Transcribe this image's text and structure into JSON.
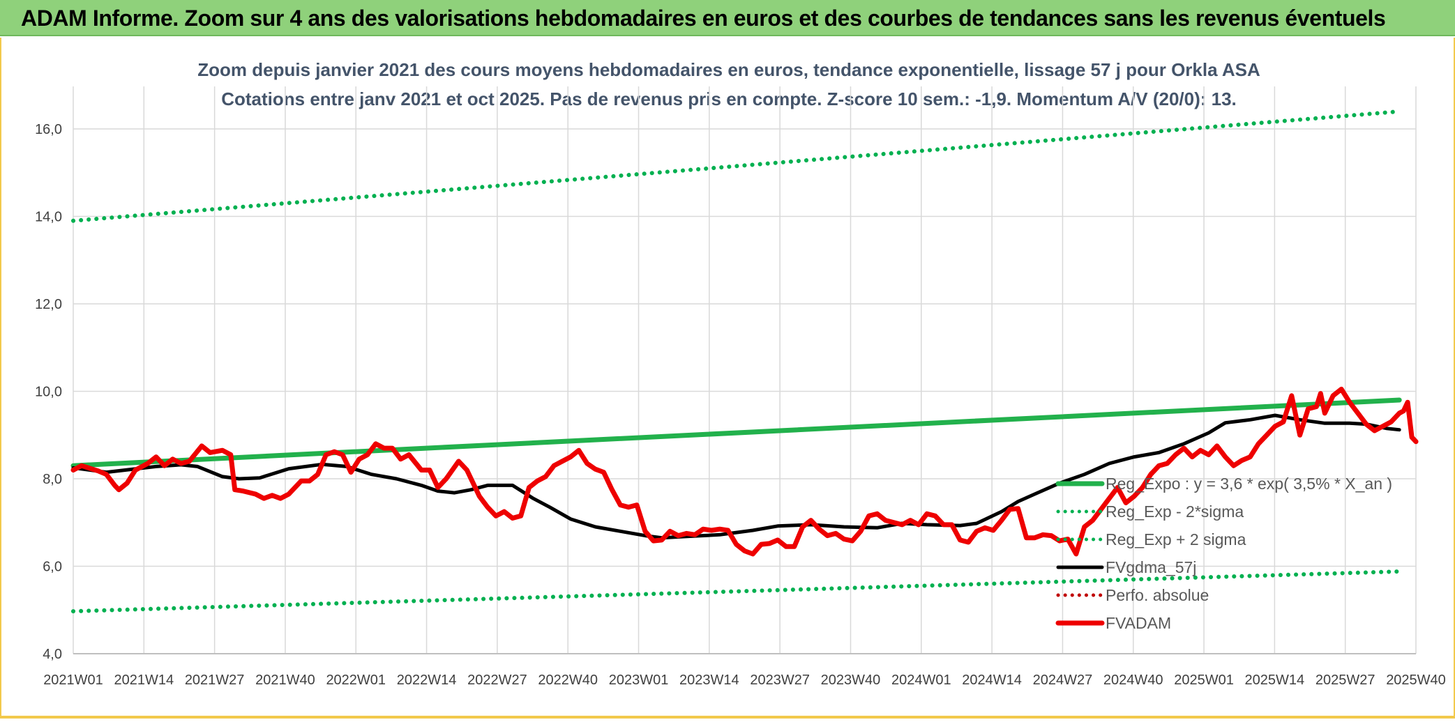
{
  "banner": {
    "title": "ADAM Informe. Zoom sur 4 ans des valorisations hebdomadaires en euros et des courbes de tendances sans les revenus éventuels"
  },
  "chart_data": {
    "type": "line",
    "title_line1": "Zoom depuis janvier 2021 des cours moyens hebdomadaires en euros, tendance exponentielle, lissage 57 j pour Orkla ASA",
    "title_line2": "Cotations entre janv 2021 et oct 2025. Pas de revenus pris en compte. Z-score 10 sem.: -1,9. Momentum A/V (20/0): 13.",
    "ylim": [
      4,
      17
    ],
    "yticks": [
      "4,0",
      "6,0",
      "8,0",
      "10,0",
      "12,0",
      "14,0",
      "16,0"
    ],
    "ytick_values": [
      4,
      6,
      8,
      10,
      12,
      14,
      16
    ],
    "xticks": [
      "2021W01",
      "2021W14",
      "2021W27",
      "2021W40",
      "2022W01",
      "2022W14",
      "2022W27",
      "2022W40",
      "2023W01",
      "2023W14",
      "2023W27",
      "2023W40",
      "2024W01",
      "2024W14",
      "2024W27",
      "2024W40",
      "2025W01",
      "2025W14",
      "2025W27",
      "2025W40"
    ],
    "x_count": 249,
    "grid": true,
    "legend_position": "bottom-right",
    "colors": {
      "reg_expo": "#22b14c",
      "sigma": "#00b050",
      "fvgdma": "#000000",
      "perfo": "#c00000",
      "fvadam": "#ee0000"
    },
    "series": [
      {
        "name": "Reg_Expo : y = 3,6 * exp( 3,5% *  X_an )",
        "key": "reg_expo",
        "style": "solid",
        "knots": [
          [
            0,
            8.3
          ],
          [
            248,
            9.8
          ]
        ]
      },
      {
        "name": "Reg_Exp - 2*sigma",
        "key": "sigma_minus",
        "style": "dotted",
        "knots": [
          [
            0,
            4.97
          ],
          [
            248,
            5.88
          ]
        ]
      },
      {
        "name": "Reg_Exp + 2 sigma",
        "key": "sigma_plus",
        "style": "dotted",
        "knots": [
          [
            0,
            13.9
          ],
          [
            248,
            16.4
          ]
        ]
      },
      {
        "name": "FVgdma_57j",
        "key": "fvgdma",
        "style": "solid",
        "knots": [
          [
            0,
            8.25
          ],
          [
            8,
            8.15
          ],
          [
            20,
            8.28
          ],
          [
            26,
            8.32
          ],
          [
            30,
            8.28
          ],
          [
            36,
            8.05
          ],
          [
            40,
            8.0
          ],
          [
            45,
            8.02
          ],
          [
            52,
            8.23
          ],
          [
            60,
            8.33
          ],
          [
            66,
            8.28
          ],
          [
            72,
            8.1
          ],
          [
            78,
            8.0
          ],
          [
            84,
            7.85
          ],
          [
            88,
            7.72
          ],
          [
            92,
            7.68
          ],
          [
            96,
            7.75
          ],
          [
            100,
            7.85
          ],
          [
            106,
            7.85
          ],
          [
            111,
            7.55
          ],
          [
            115,
            7.35
          ],
          [
            120,
            7.08
          ],
          [
            126,
            6.9
          ],
          [
            132,
            6.8
          ],
          [
            138,
            6.7
          ],
          [
            142,
            6.65
          ],
          [
            148,
            6.68
          ],
          [
            156,
            6.72
          ],
          [
            164,
            6.82
          ],
          [
            170,
            6.92
          ],
          [
            178,
            6.95
          ],
          [
            186,
            6.9
          ],
          [
            194,
            6.88
          ],
          [
            200,
            6.98
          ],
          [
            206,
            6.95
          ],
          [
            214,
            6.93
          ],
          [
            218,
            6.98
          ],
          [
            224,
            7.25
          ],
          [
            228,
            7.48
          ],
          [
            232,
            7.65
          ],
          [
            238,
            7.9
          ],
          [
            244,
            8.1
          ],
          [
            250,
            8.35
          ],
          [
            256,
            8.5
          ],
          [
            262,
            8.6
          ],
          [
            268,
            8.8
          ],
          [
            274,
            9.05
          ],
          [
            278,
            9.28
          ],
          [
            284,
            9.35
          ],
          [
            290,
            9.45
          ],
          [
            296,
            9.35
          ],
          [
            302,
            9.27
          ],
          [
            308,
            9.27
          ],
          [
            312,
            9.25
          ],
          [
            317,
            9.15
          ],
          [
            320,
            9.12
          ]
        ]
      },
      {
        "name": "Perfo. absolue",
        "key": "perfo",
        "style": "dotted",
        "knots": []
      },
      {
        "name": "FVADAM",
        "key": "fvadam",
        "style": "solid",
        "knots": [
          [
            0,
            8.2
          ],
          [
            2,
            8.3
          ],
          [
            6,
            8.18
          ],
          [
            8,
            8.1
          ],
          [
            10,
            7.85
          ],
          [
            11,
            7.75
          ],
          [
            13,
            7.9
          ],
          [
            15,
            8.2
          ],
          [
            18,
            8.35
          ],
          [
            20,
            8.5
          ],
          [
            22,
            8.3
          ],
          [
            24,
            8.45
          ],
          [
            26,
            8.35
          ],
          [
            28,
            8.4
          ],
          [
            31,
            8.75
          ],
          [
            33,
            8.6
          ],
          [
            36,
            8.65
          ],
          [
            38,
            8.55
          ],
          [
            39,
            7.75
          ],
          [
            41,
            7.72
          ],
          [
            44,
            7.65
          ],
          [
            46,
            7.55
          ],
          [
            48,
            7.62
          ],
          [
            50,
            7.55
          ],
          [
            52,
            7.65
          ],
          [
            55,
            7.95
          ],
          [
            57,
            7.95
          ],
          [
            59,
            8.1
          ],
          [
            61,
            8.55
          ],
          [
            63,
            8.62
          ],
          [
            65,
            8.55
          ],
          [
            67,
            8.15
          ],
          [
            69,
            8.45
          ],
          [
            71,
            8.55
          ],
          [
            73,
            8.8
          ],
          [
            75,
            8.7
          ],
          [
            77,
            8.7
          ],
          [
            79,
            8.45
          ],
          [
            81,
            8.55
          ],
          [
            84,
            8.2
          ],
          [
            86,
            8.2
          ],
          [
            88,
            7.8
          ],
          [
            90,
            8.0
          ],
          [
            93,
            8.4
          ],
          [
            95,
            8.2
          ],
          [
            98,
            7.6
          ],
          [
            100,
            7.35
          ],
          [
            102,
            7.15
          ],
          [
            104,
            7.25
          ],
          [
            106,
            7.1
          ],
          [
            108,
            7.15
          ],
          [
            110,
            7.8
          ],
          [
            112,
            7.95
          ],
          [
            114,
            8.05
          ],
          [
            116,
            8.3
          ],
          [
            118,
            8.4
          ],
          [
            120,
            8.5
          ],
          [
            122,
            8.65
          ],
          [
            124,
            8.35
          ],
          [
            126,
            8.22
          ],
          [
            128,
            8.15
          ],
          [
            130,
            7.75
          ],
          [
            132,
            7.4
          ],
          [
            134,
            7.35
          ],
          [
            136,
            7.4
          ],
          [
            138,
            6.8
          ],
          [
            140,
            6.58
          ],
          [
            142,
            6.6
          ],
          [
            144,
            6.8
          ],
          [
            146,
            6.7
          ],
          [
            148,
            6.75
          ],
          [
            150,
            6.72
          ],
          [
            152,
            6.85
          ],
          [
            154,
            6.82
          ],
          [
            156,
            6.85
          ],
          [
            158,
            6.82
          ],
          [
            160,
            6.5
          ],
          [
            162,
            6.35
          ],
          [
            164,
            6.28
          ],
          [
            166,
            6.5
          ],
          [
            168,
            6.52
          ],
          [
            170,
            6.6
          ],
          [
            172,
            6.45
          ],
          [
            174,
            6.45
          ],
          [
            176,
            6.9
          ],
          [
            178,
            7.05
          ],
          [
            180,
            6.85
          ],
          [
            182,
            6.7
          ],
          [
            184,
            6.75
          ],
          [
            186,
            6.62
          ],
          [
            188,
            6.58
          ],
          [
            190,
            6.8
          ],
          [
            192,
            7.15
          ],
          [
            194,
            7.2
          ],
          [
            196,
            7.05
          ],
          [
            198,
            7.0
          ],
          [
            200,
            6.95
          ],
          [
            202,
            7.05
          ],
          [
            204,
            6.95
          ],
          [
            206,
            7.2
          ],
          [
            208,
            7.15
          ],
          [
            210,
            6.95
          ],
          [
            212,
            6.95
          ],
          [
            214,
            6.6
          ],
          [
            216,
            6.55
          ],
          [
            218,
            6.8
          ],
          [
            220,
            6.88
          ],
          [
            222,
            6.82
          ],
          [
            224,
            7.05
          ],
          [
            226,
            7.3
          ],
          [
            228,
            7.32
          ],
          [
            230,
            6.65
          ],
          [
            232,
            6.65
          ],
          [
            234,
            6.72
          ],
          [
            236,
            6.7
          ],
          [
            238,
            6.58
          ],
          [
            240,
            6.62
          ],
          [
            242,
            6.28
          ],
          [
            244,
            6.9
          ],
          [
            246,
            7.05
          ],
          [
            248,
            7.3
          ],
          [
            250,
            7.55
          ],
          [
            252,
            7.8
          ],
          [
            254,
            7.45
          ],
          [
            256,
            7.6
          ],
          [
            258,
            7.8
          ],
          [
            260,
            8.1
          ],
          [
            262,
            8.3
          ],
          [
            264,
            8.35
          ],
          [
            266,
            8.55
          ],
          [
            268,
            8.7
          ],
          [
            270,
            8.5
          ],
          [
            272,
            8.65
          ],
          [
            274,
            8.55
          ],
          [
            276,
            8.75
          ],
          [
            278,
            8.5
          ],
          [
            280,
            8.3
          ],
          [
            282,
            8.42
          ],
          [
            284,
            8.5
          ],
          [
            286,
            8.8
          ],
          [
            288,
            9.0
          ],
          [
            290,
            9.2
          ],
          [
            292,
            9.3
          ],
          [
            294,
            9.9
          ],
          [
            296,
            9.0
          ],
          [
            298,
            9.6
          ],
          [
            300,
            9.65
          ],
          [
            301,
            9.95
          ],
          [
            302,
            9.5
          ],
          [
            304,
            9.9
          ],
          [
            306,
            10.05
          ],
          [
            308,
            9.75
          ],
          [
            310,
            9.5
          ],
          [
            312,
            9.25
          ],
          [
            314,
            9.1
          ],
          [
            316,
            9.2
          ],
          [
            318,
            9.3
          ],
          [
            320,
            9.5
          ],
          [
            321,
            9.55
          ],
          [
            322,
            9.75
          ],
          [
            323,
            8.95
          ],
          [
            324,
            8.85
          ]
        ]
      }
    ]
  }
}
